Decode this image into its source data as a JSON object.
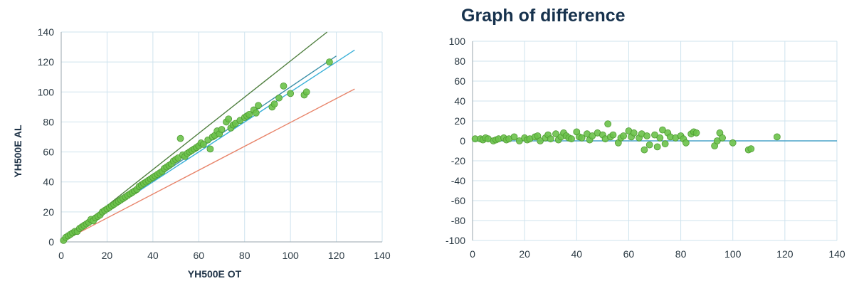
{
  "chart_data": [
    {
      "type": "scatter",
      "title": "",
      "xlabel": "YH500E OT",
      "ylabel": "YH500E AL",
      "xlim": [
        0,
        140
      ],
      "ylim": [
        0,
        140
      ],
      "xticks": [
        0,
        20,
        40,
        60,
        80,
        100,
        120,
        140
      ],
      "yticks": [
        0,
        20,
        40,
        60,
        80,
        100,
        120,
        140
      ],
      "grid": true,
      "lines": [
        {
          "color": "#4f7f3f",
          "x": [
            0,
            116
          ],
          "y": [
            0,
            140
          ]
        },
        {
          "color": "#3a8fa8",
          "x": [
            0,
            120
          ],
          "y": [
            0,
            124
          ]
        },
        {
          "color": "#3ab0d8",
          "x": [
            0,
            128
          ],
          "y": [
            0,
            128
          ]
        },
        {
          "color": "#e8846a",
          "x": [
            0,
            128
          ],
          "y": [
            0,
            102
          ]
        }
      ],
      "series": [
        {
          "color": "#6cc24a",
          "x": [
            1,
            2,
            3,
            4,
            5,
            6,
            7,
            8,
            9,
            10,
            11,
            12,
            13,
            14,
            15,
            16,
            17,
            18,
            19,
            20,
            21,
            22,
            23,
            24,
            25,
            26,
            27,
            28,
            29,
            30,
            31,
            32,
            33,
            34,
            35,
            36,
            37,
            38,
            39,
            40,
            41,
            42,
            43,
            44,
            45,
            46,
            47,
            48,
            49,
            50,
            51,
            52,
            53,
            54,
            55,
            56,
            57,
            58,
            59,
            60,
            61,
            62,
            64,
            65,
            66,
            67,
            68,
            69,
            70,
            72,
            73,
            74,
            75,
            76,
            78,
            80,
            81,
            82,
            84,
            85,
            86,
            92,
            93,
            95,
            97,
            100,
            106,
            107,
            117
          ],
          "y": [
            1,
            3,
            4,
            5,
            6,
            7,
            7,
            9,
            10,
            11,
            12,
            13,
            15,
            14,
            16,
            17,
            18,
            20,
            21,
            22,
            23,
            24,
            25,
            26,
            27,
            28,
            29,
            30,
            31,
            32,
            33,
            34,
            35,
            37,
            38,
            39,
            40,
            41,
            42,
            43,
            44,
            45,
            46,
            47,
            49,
            50,
            51,
            52,
            54,
            55,
            56,
            69,
            58,
            57,
            59,
            60,
            61,
            62,
            63,
            64,
            66,
            65,
            68,
            62,
            70,
            71,
            74,
            72,
            75,
            80,
            82,
            76,
            78,
            79,
            81,
            83,
            84,
            85,
            88,
            86,
            91,
            90,
            92,
            96,
            104,
            99,
            98,
            100,
            120
          ]
        }
      ]
    },
    {
      "type": "scatter",
      "title": "Graph of difference",
      "xlabel": "",
      "ylabel": "",
      "xlim": [
        0,
        140
      ],
      "ylim": [
        -100,
        100
      ],
      "xticks": [
        0,
        20,
        40,
        60,
        80,
        100,
        120,
        140
      ],
      "yticks": [
        100,
        80,
        60,
        40,
        20,
        0,
        -20,
        -40,
        -60,
        -80,
        -100
      ],
      "grid": true,
      "baseline": {
        "y": 0,
        "color": "#4aa3c8"
      },
      "series": [
        {
          "color": "#6cc24a",
          "x": [
            1,
            3,
            4,
            5,
            6,
            8,
            9,
            10,
            12,
            13,
            14,
            16,
            18,
            20,
            21,
            22,
            24,
            25,
            26,
            28,
            29,
            30,
            32,
            33,
            34,
            35,
            36,
            37,
            38,
            40,
            41,
            42,
            44,
            45,
            46,
            48,
            50,
            51,
            52,
            53,
            54,
            56,
            57,
            58,
            60,
            61,
            62,
            64,
            65,
            66,
            67,
            68,
            70,
            71,
            72,
            73,
            74,
            75,
            76,
            78,
            80,
            81,
            82,
            84,
            85,
            86,
            93,
            94,
            95,
            96,
            100,
            106,
            107,
            117
          ],
          "y": [
            2,
            2,
            1,
            3,
            2,
            0,
            1,
            2,
            3,
            1,
            2,
            4,
            0,
            3,
            1,
            2,
            4,
            5,
            0,
            3,
            6,
            2,
            7,
            1,
            4,
            8,
            5,
            3,
            2,
            9,
            4,
            3,
            7,
            1,
            5,
            8,
            6,
            2,
            17,
            4,
            6,
            -2,
            3,
            5,
            10,
            4,
            8,
            3,
            7,
            -9,
            5,
            -4,
            6,
            -6,
            3,
            11,
            -3,
            8,
            4,
            3,
            5,
            2,
            -2,
            7,
            9,
            8,
            -5,
            0,
            8,
            3,
            -2,
            -9,
            -8,
            4
          ]
        }
      ]
    }
  ]
}
